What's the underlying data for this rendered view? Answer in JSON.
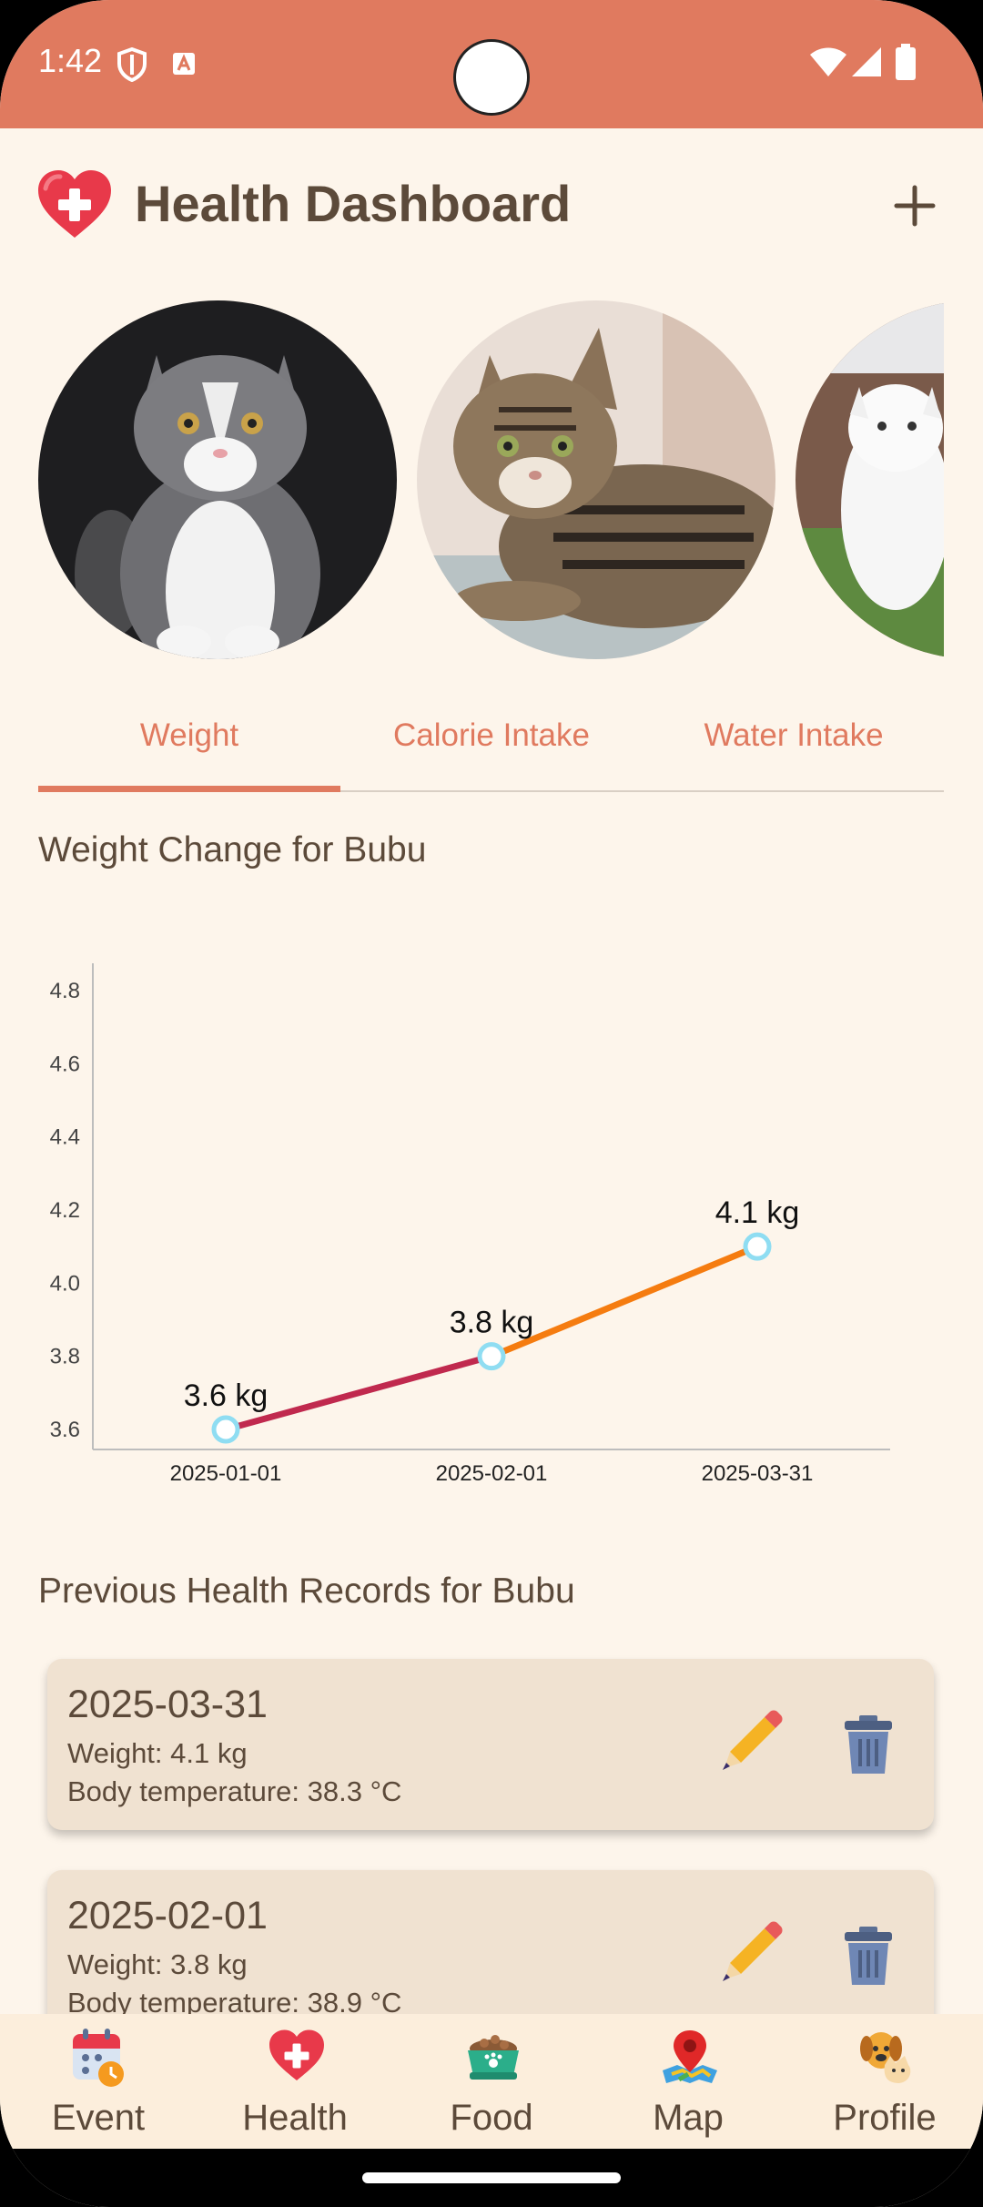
{
  "status_bar": {
    "time": "1:42"
  },
  "header": {
    "title": "Health Dashboard"
  },
  "tabs": [
    {
      "label": "Weight",
      "active": true
    },
    {
      "label": "Calorie Intake",
      "active": false
    },
    {
      "label": "Water Intake",
      "active": false
    }
  ],
  "chart_section": {
    "title": "Weight Change for Bubu"
  },
  "chart_data": {
    "type": "line",
    "title": "",
    "xlabel": "",
    "ylabel": "",
    "categories": [
      "2025-01-01",
      "2025-02-01",
      "2025-03-31"
    ],
    "values": [
      3.6,
      3.8,
      4.1
    ],
    "data_labels": [
      "3.6 kg",
      "3.8 kg",
      "4.1 kg"
    ],
    "yticks": [
      "3.6",
      "3.8",
      "4.0",
      "4.2",
      "4.4",
      "4.6",
      "4.8"
    ],
    "ylim": [
      3.6,
      4.8
    ],
    "segment_colors": [
      "#C0294E",
      "#F57C10"
    ],
    "point_color": "#8FDDF2",
    "grid": false,
    "legend": "none"
  },
  "records_section": {
    "title": "Previous Health Records for Bubu",
    "records": [
      {
        "date": "2025-03-31",
        "weight": "Weight: 4.1 kg",
        "temperature": "Body temperature: 38.3 °C"
      },
      {
        "date": "2025-02-01",
        "weight": "Weight: 3.8 kg",
        "temperature": "Body temperature: 38.9 °C"
      }
    ]
  },
  "bottom_nav": [
    {
      "label": "Event",
      "icon": "calendar-icon"
    },
    {
      "label": "Health",
      "icon": "heart-icon"
    },
    {
      "label": "Food",
      "icon": "food-bowl-icon"
    },
    {
      "label": "Map",
      "icon": "map-pin-icon"
    },
    {
      "label": "Profile",
      "icon": "dog-cat-icon"
    }
  ],
  "colors": {
    "accent": "#E07A5F",
    "background": "#FDF5EB",
    "card": "#F0E2D1",
    "text": "#5C4A3A"
  }
}
